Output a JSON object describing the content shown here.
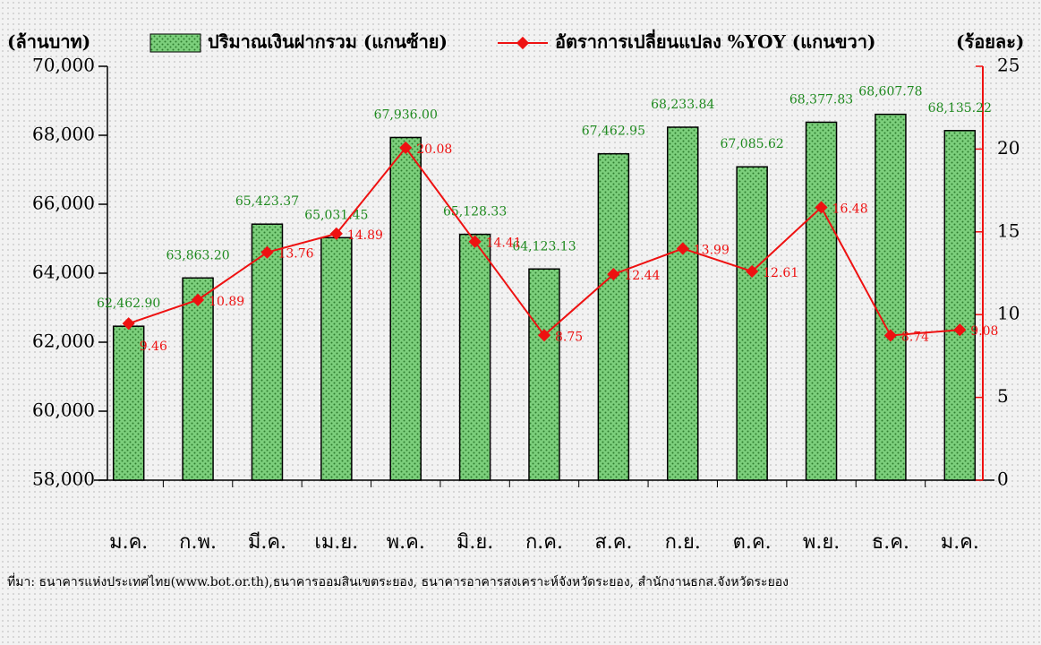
{
  "chart_data": {
    "type": "bar",
    "y_label": "(ล้านบาท)",
    "y2_label": "(ร้อยละ)",
    "categories": [
      "ม.ค.",
      "ก.พ.",
      "มี.ค.",
      "เม.ย.",
      "พ.ค.",
      "มิ.ย.",
      "ก.ค.",
      "ส.ค.",
      "ก.ย.",
      "ต.ค.",
      "พ.ย.",
      "ธ.ค.",
      "ม.ค."
    ],
    "series": [
      {
        "name": "ปริมาณเงินฝากรวม (แกนซ้าย)",
        "type": "bar",
        "color": "#6ec46e",
        "values": [
          62462.9,
          63863.2,
          65423.37,
          65031.45,
          67936.0,
          65128.33,
          64123.13,
          67462.95,
          68233.84,
          67085.62,
          68377.83,
          68607.78,
          68135.22
        ],
        "value_labels": [
          "62,462.90",
          "63,863.20",
          "65,423.37",
          "65,031.45",
          "67,936.00",
          "65,128.33",
          "64,123.13",
          "67,462.95",
          "68,233.84",
          "67,085.62",
          "68,377.83",
          "68,607.78",
          "68,135.22"
        ]
      },
      {
        "name": "อัตราการเปลี่ยนแปลง %YOY (แกนขวา)",
        "type": "line",
        "axis": "y2",
        "color": "#ee1111",
        "values": [
          9.46,
          10.89,
          13.76,
          14.89,
          20.08,
          14.41,
          8.75,
          12.44,
          13.99,
          12.61,
          16.48,
          8.74,
          9.08
        ]
      }
    ],
    "ylim": [
      58000,
      70000
    ],
    "yticks": [
      {
        "value": 58000,
        "label": "58,000"
      },
      {
        "value": 60000,
        "label": "60,000"
      },
      {
        "value": 62000,
        "label": "62,000"
      },
      {
        "value": 64000,
        "label": "64,000"
      },
      {
        "value": 66000,
        "label": "66,000"
      },
      {
        "value": 68000,
        "label": "68,000"
      },
      {
        "value": 70000,
        "label": "70,000"
      }
    ],
    "y2lim": [
      0,
      25
    ],
    "y2ticks": [
      0,
      5,
      10,
      15,
      20,
      25
    ],
    "legend": "top",
    "source": "ที่มา: ธนาคารแห่งประเทศไทย(www.bot.or.th),ธนาคารออมสินเขตระยอง, ธนาคารอาคารสงเคราะห์จังหวัดระยอง, สำนักงานธกส.จังหวัดระยอง"
  }
}
